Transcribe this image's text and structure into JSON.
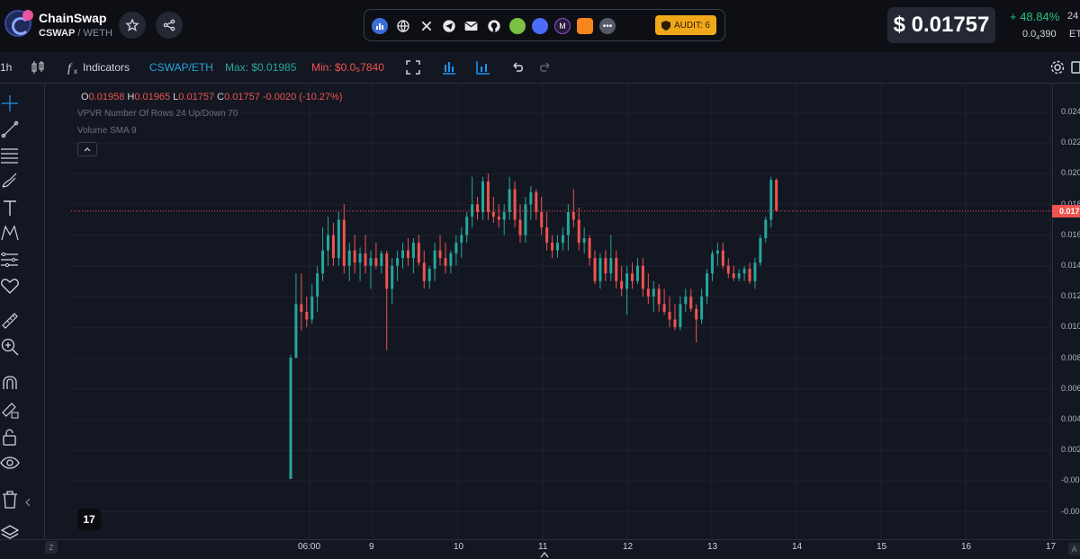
{
  "header": {
    "brand": "ChainSwap",
    "pair_base": "CSWAP",
    "pair_sep": "/",
    "pair_quote": "WETH",
    "audit_label": "AUDIT: 6",
    "price": "$ 0.01757",
    "change": "+ 48.84%",
    "change_period": "24",
    "eth_price_prefix": "0.0",
    "eth_price_sub": "4",
    "eth_price_suffix": "390",
    "eth_unit": "ET",
    "socials": [
      "chart-icon",
      "globe-icon",
      "x-icon",
      "telegram-icon",
      "mail-icon",
      "github-icon",
      "green-coin-icon",
      "blue-coin-icon",
      "purple-m-icon",
      "metamask-icon",
      "more-icon"
    ]
  },
  "toolbar": {
    "interval": "1h",
    "indicators": "Indicators",
    "symbol": "CSWAP/ETH",
    "max": "Max: $0.01985",
    "min": "Min: $0.0₅7840"
  },
  "legend": {
    "o_label": "O",
    "o_value": "0.01958",
    "h_label": "H",
    "h_value": "0.01965",
    "l_label": "L",
    "l_value": "0.01757",
    "c_label": "C",
    "c_value": "0.01757",
    "change": "-0.0020 (-10.27%)",
    "indicator1": "VPVR Number Of Rows 24 Up/Down 70",
    "indicator2": "Volume SMA 9"
  },
  "colors": {
    "up": "#26a69a",
    "down": "#ef5350",
    "bg": "#131722",
    "accent": "#2196f3"
  },
  "yaxis": {
    "ticks": [
      "0.024",
      "0.022",
      "0.020",
      "0.018",
      "0.016",
      "0.014",
      "0.012",
      "0.010",
      "0.008",
      "0.006",
      "0.004",
      "0.002",
      "-0.00",
      "-0.00"
    ],
    "price_tag": "0.017"
  },
  "xaxis": {
    "ticks": [
      "06:00",
      "9",
      "10",
      "11",
      "12",
      "13",
      "14",
      "15",
      "16",
      "17"
    ],
    "z_btn": "Z",
    "a_btn": "A"
  },
  "tv_logo": "17",
  "chart_data": {
    "type": "candlestick",
    "xlabel": "",
    "ylabel": "",
    "current_price": 0.01757,
    "candles": [
      {
        "t": 1,
        "o": 0.0001,
        "h": 0.0082,
        "l": 0.0001,
        "c": 0.008
      },
      {
        "t": 2,
        "o": 0.008,
        "h": 0.0135,
        "l": 0.008,
        "c": 0.0115
      },
      {
        "t": 3,
        "o": 0.0115,
        "h": 0.0135,
        "l": 0.0098,
        "c": 0.011
      },
      {
        "t": 4,
        "o": 0.011,
        "h": 0.012,
        "l": 0.01,
        "c": 0.0105
      },
      {
        "t": 5,
        "o": 0.0105,
        "h": 0.0128,
        "l": 0.0102,
        "c": 0.012
      },
      {
        "t": 6,
        "o": 0.012,
        "h": 0.014,
        "l": 0.011,
        "c": 0.0135
      },
      {
        "t": 7,
        "o": 0.0135,
        "h": 0.0165,
        "l": 0.013,
        "c": 0.015
      },
      {
        "t": 8,
        "o": 0.015,
        "h": 0.0172,
        "l": 0.014,
        "c": 0.016
      },
      {
        "t": 9,
        "o": 0.016,
        "h": 0.0168,
        "l": 0.014,
        "c": 0.0145
      },
      {
        "t": 10,
        "o": 0.0145,
        "h": 0.0175,
        "l": 0.014,
        "c": 0.017
      },
      {
        "t": 11,
        "o": 0.017,
        "h": 0.018,
        "l": 0.0135,
        "c": 0.014
      },
      {
        "t": 12,
        "o": 0.014,
        "h": 0.0155,
        "l": 0.013,
        "c": 0.015
      },
      {
        "t": 13,
        "o": 0.015,
        "h": 0.016,
        "l": 0.0135,
        "c": 0.0142
      },
      {
        "t": 14,
        "o": 0.0142,
        "h": 0.0152,
        "l": 0.013,
        "c": 0.0148
      },
      {
        "t": 15,
        "o": 0.0148,
        "h": 0.016,
        "l": 0.0135,
        "c": 0.014
      },
      {
        "t": 16,
        "o": 0.014,
        "h": 0.015,
        "l": 0.0125,
        "c": 0.0145
      },
      {
        "t": 17,
        "o": 0.0145,
        "h": 0.0155,
        "l": 0.0138,
        "c": 0.014
      },
      {
        "t": 18,
        "o": 0.014,
        "h": 0.015,
        "l": 0.0135,
        "c": 0.0148
      },
      {
        "t": 19,
        "o": 0.0148,
        "h": 0.015,
        "l": 0.0085,
        "c": 0.0125
      },
      {
        "t": 20,
        "o": 0.0125,
        "h": 0.0145,
        "l": 0.0115,
        "c": 0.014
      },
      {
        "t": 21,
        "o": 0.014,
        "h": 0.015,
        "l": 0.013,
        "c": 0.0145
      },
      {
        "t": 22,
        "o": 0.0145,
        "h": 0.0155,
        "l": 0.0138,
        "c": 0.015
      },
      {
        "t": 23,
        "o": 0.015,
        "h": 0.0158,
        "l": 0.014,
        "c": 0.0145
      },
      {
        "t": 24,
        "o": 0.0145,
        "h": 0.0158,
        "l": 0.0135,
        "c": 0.0155
      },
      {
        "t": 25,
        "o": 0.0155,
        "h": 0.016,
        "l": 0.014,
        "c": 0.0142
      },
      {
        "t": 26,
        "o": 0.0142,
        "h": 0.015,
        "l": 0.0125,
        "c": 0.013
      },
      {
        "t": 27,
        "o": 0.013,
        "h": 0.014,
        "l": 0.0125,
        "c": 0.0138
      },
      {
        "t": 28,
        "o": 0.0138,
        "h": 0.0155,
        "l": 0.013,
        "c": 0.015
      },
      {
        "t": 29,
        "o": 0.015,
        "h": 0.016,
        "l": 0.014,
        "c": 0.0145
      },
      {
        "t": 30,
        "o": 0.0145,
        "h": 0.0155,
        "l": 0.0135,
        "c": 0.014
      },
      {
        "t": 31,
        "o": 0.014,
        "h": 0.015,
        "l": 0.0135,
        "c": 0.0148
      },
      {
        "t": 32,
        "o": 0.0148,
        "h": 0.016,
        "l": 0.014,
        "c": 0.0155
      },
      {
        "t": 33,
        "o": 0.0155,
        "h": 0.0165,
        "l": 0.0145,
        "c": 0.016
      },
      {
        "t": 34,
        "o": 0.016,
        "h": 0.0175,
        "l": 0.0155,
        "c": 0.0172
      },
      {
        "t": 35,
        "o": 0.0172,
        "h": 0.0198,
        "l": 0.0165,
        "c": 0.018
      },
      {
        "t": 36,
        "o": 0.018,
        "h": 0.0185,
        "l": 0.017,
        "c": 0.0175
      },
      {
        "t": 37,
        "o": 0.0175,
        "h": 0.0198,
        "l": 0.017,
        "c": 0.0195
      },
      {
        "t": 38,
        "o": 0.0195,
        "h": 0.02,
        "l": 0.017,
        "c": 0.0175
      },
      {
        "t": 39,
        "o": 0.0175,
        "h": 0.0185,
        "l": 0.0168,
        "c": 0.0172
      },
      {
        "t": 40,
        "o": 0.0172,
        "h": 0.018,
        "l": 0.0165,
        "c": 0.017
      },
      {
        "t": 41,
        "o": 0.017,
        "h": 0.018,
        "l": 0.016,
        "c": 0.0175
      },
      {
        "t": 42,
        "o": 0.0175,
        "h": 0.0198,
        "l": 0.017,
        "c": 0.019
      },
      {
        "t": 43,
        "o": 0.019,
        "h": 0.0195,
        "l": 0.0165,
        "c": 0.017
      },
      {
        "t": 44,
        "o": 0.017,
        "h": 0.018,
        "l": 0.0155,
        "c": 0.016
      },
      {
        "t": 45,
        "o": 0.016,
        "h": 0.0185,
        "l": 0.0155,
        "c": 0.018
      },
      {
        "t": 46,
        "o": 0.018,
        "h": 0.0192,
        "l": 0.017,
        "c": 0.0188
      },
      {
        "t": 47,
        "o": 0.0188,
        "h": 0.019,
        "l": 0.017,
        "c": 0.0175
      },
      {
        "t": 48,
        "o": 0.0175,
        "h": 0.0185,
        "l": 0.016,
        "c": 0.0165
      },
      {
        "t": 49,
        "o": 0.0165,
        "h": 0.0175,
        "l": 0.015,
        "c": 0.0155
      },
      {
        "t": 50,
        "o": 0.0155,
        "h": 0.016,
        "l": 0.0145,
        "c": 0.015
      },
      {
        "t": 51,
        "o": 0.015,
        "h": 0.016,
        "l": 0.0145,
        "c": 0.0155
      },
      {
        "t": 52,
        "o": 0.0155,
        "h": 0.0165,
        "l": 0.015,
        "c": 0.016
      },
      {
        "t": 53,
        "o": 0.016,
        "h": 0.018,
        "l": 0.015,
        "c": 0.0175
      },
      {
        "t": 54,
        "o": 0.0175,
        "h": 0.019,
        "l": 0.0165,
        "c": 0.017
      },
      {
        "t": 55,
        "o": 0.017,
        "h": 0.0178,
        "l": 0.015,
        "c": 0.0155
      },
      {
        "t": 56,
        "o": 0.0155,
        "h": 0.0165,
        "l": 0.0148,
        "c": 0.0158
      },
      {
        "t": 57,
        "o": 0.0158,
        "h": 0.016,
        "l": 0.014,
        "c": 0.0145
      },
      {
        "t": 58,
        "o": 0.0145,
        "h": 0.015,
        "l": 0.0128,
        "c": 0.013
      },
      {
        "t": 59,
        "o": 0.013,
        "h": 0.0148,
        "l": 0.0125,
        "c": 0.0145
      },
      {
        "t": 60,
        "o": 0.0145,
        "h": 0.015,
        "l": 0.013,
        "c": 0.0135
      },
      {
        "t": 61,
        "o": 0.0135,
        "h": 0.016,
        "l": 0.013,
        "c": 0.0145
      },
      {
        "t": 62,
        "o": 0.0145,
        "h": 0.015,
        "l": 0.0125,
        "c": 0.013
      },
      {
        "t": 63,
        "o": 0.013,
        "h": 0.014,
        "l": 0.012,
        "c": 0.0125
      },
      {
        "t": 64,
        "o": 0.0125,
        "h": 0.014,
        "l": 0.0108,
        "c": 0.0135
      },
      {
        "t": 65,
        "o": 0.0135,
        "h": 0.0142,
        "l": 0.0125,
        "c": 0.013
      },
      {
        "t": 66,
        "o": 0.013,
        "h": 0.0145,
        "l": 0.0128,
        "c": 0.014
      },
      {
        "t": 67,
        "o": 0.014,
        "h": 0.0145,
        "l": 0.012,
        "c": 0.0125
      },
      {
        "t": 68,
        "o": 0.0125,
        "h": 0.0135,
        "l": 0.0115,
        "c": 0.012
      },
      {
        "t": 69,
        "o": 0.012,
        "h": 0.013,
        "l": 0.011,
        "c": 0.0125
      },
      {
        "t": 70,
        "o": 0.0125,
        "h": 0.0128,
        "l": 0.011,
        "c": 0.0115
      },
      {
        "t": 71,
        "o": 0.0115,
        "h": 0.0125,
        "l": 0.0108,
        "c": 0.011
      },
      {
        "t": 72,
        "o": 0.011,
        "h": 0.012,
        "l": 0.01,
        "c": 0.0105
      },
      {
        "t": 73,
        "o": 0.0105,
        "h": 0.0115,
        "l": 0.0098,
        "c": 0.01
      },
      {
        "t": 74,
        "o": 0.01,
        "h": 0.012,
        "l": 0.0098,
        "c": 0.0115
      },
      {
        "t": 75,
        "o": 0.0115,
        "h": 0.0125,
        "l": 0.011,
        "c": 0.012
      },
      {
        "t": 76,
        "o": 0.012,
        "h": 0.0125,
        "l": 0.011,
        "c": 0.0112
      },
      {
        "t": 77,
        "o": 0.0112,
        "h": 0.0115,
        "l": 0.009,
        "c": 0.0105
      },
      {
        "t": 78,
        "o": 0.0105,
        "h": 0.0125,
        "l": 0.0102,
        "c": 0.012
      },
      {
        "t": 79,
        "o": 0.012,
        "h": 0.0138,
        "l": 0.0115,
        "c": 0.0135
      },
      {
        "t": 80,
        "o": 0.0135,
        "h": 0.015,
        "l": 0.013,
        "c": 0.0148
      },
      {
        "t": 81,
        "o": 0.0148,
        "h": 0.0155,
        "l": 0.014,
        "c": 0.015
      },
      {
        "t": 82,
        "o": 0.015,
        "h": 0.0155,
        "l": 0.0138,
        "c": 0.014
      },
      {
        "t": 83,
        "o": 0.014,
        "h": 0.0145,
        "l": 0.0132,
        "c": 0.0135
      },
      {
        "t": 84,
        "o": 0.0135,
        "h": 0.014,
        "l": 0.013,
        "c": 0.0132
      },
      {
        "t": 85,
        "o": 0.0132,
        "h": 0.0138,
        "l": 0.013,
        "c": 0.0135
      },
      {
        "t": 86,
        "o": 0.0135,
        "h": 0.014,
        "l": 0.013,
        "c": 0.0138
      },
      {
        "t": 87,
        "o": 0.0138,
        "h": 0.0142,
        "l": 0.0128,
        "c": 0.013
      },
      {
        "t": 88,
        "o": 0.013,
        "h": 0.0145,
        "l": 0.0125,
        "c": 0.0142
      },
      {
        "t": 89,
        "o": 0.0142,
        "h": 0.016,
        "l": 0.014,
        "c": 0.0158
      },
      {
        "t": 90,
        "o": 0.0158,
        "h": 0.0172,
        "l": 0.0155,
        "c": 0.017
      },
      {
        "t": 91,
        "o": 0.017,
        "h": 0.0198,
        "l": 0.0165,
        "c": 0.0196
      },
      {
        "t": 92,
        "o": 0.0196,
        "h": 0.0197,
        "l": 0.0175,
        "c": 0.0176
      }
    ]
  }
}
